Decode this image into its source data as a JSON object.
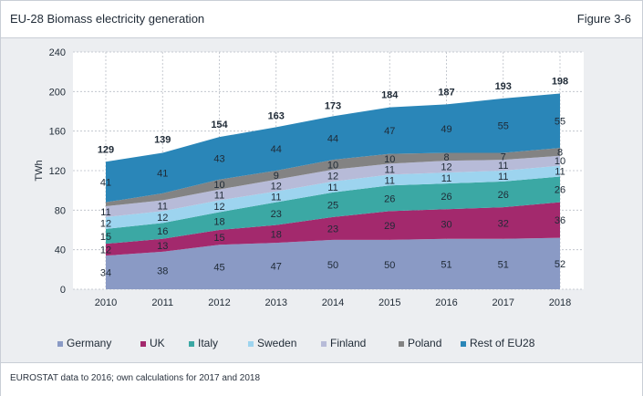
{
  "header": {
    "title": "EU-28 Biomass electricity generation",
    "figure": "Figure 3-6"
  },
  "footer": {
    "note": "EUROSTAT data to 2016; own calculations for 2017 and 2018"
  },
  "colors": {
    "Germany": "#8a9ac5",
    "UK": "#a3296d",
    "Italy": "#3ba8a4",
    "Sweden": "#9dd4ef",
    "Finland": "#b7bbd8",
    "Poland": "#838383",
    "Rest of EU28": "#2a86b8"
  },
  "chart_data": {
    "type": "area",
    "stacked": true,
    "title": "",
    "xlabel": "",
    "ylabel": "TWh",
    "ylim": [
      0,
      240
    ],
    "yticks": [
      0,
      40,
      80,
      120,
      160,
      200,
      240
    ],
    "grid": true,
    "legend_position": "bottom",
    "x": [
      "2010",
      "2011",
      "2012",
      "2013",
      "2014",
      "2015",
      "2016",
      "2017",
      "2018"
    ],
    "totals": [
      129,
      139,
      154,
      163,
      173,
      184,
      187,
      193,
      198
    ],
    "series": [
      {
        "name": "Germany",
        "values": [
          34,
          38,
          45,
          47,
          50,
          50,
          51,
          51,
          52
        ]
      },
      {
        "name": "UK",
        "values": [
          12,
          13,
          15,
          18,
          23,
          29,
          30,
          32,
          36
        ]
      },
      {
        "name": "Italy",
        "values": [
          15,
          16,
          18,
          23,
          25,
          26,
          26,
          26,
          26
        ]
      },
      {
        "name": "Sweden",
        "values": [
          12,
          12,
          12,
          11,
          11,
          11,
          11,
          11,
          11
        ]
      },
      {
        "name": "Finland",
        "values": [
          11,
          11,
          11,
          12,
          12,
          11,
          12,
          11,
          10
        ]
      },
      {
        "name": "Poland",
        "values": [
          4,
          7,
          10,
          9,
          10,
          10,
          8,
          7,
          8
        ]
      },
      {
        "name": "Rest of EU28",
        "values": [
          41,
          41,
          43,
          44,
          44,
          47,
          49,
          55,
          55
        ]
      }
    ],
    "shown_labels": [
      [
        "34",
        "38",
        "45",
        "47",
        "50",
        "50",
        "51",
        "51",
        "52"
      ],
      [
        "12",
        "13",
        "15",
        "18",
        "23",
        "29",
        "30",
        "32",
        "36"
      ],
      [
        "15",
        "16",
        "18",
        "23",
        "25",
        "26",
        "26",
        "26",
        "26"
      ],
      [
        "12",
        "12",
        "12",
        "11",
        "11",
        "11",
        "11",
        "11",
        "11"
      ],
      [
        "11",
        "11",
        "11",
        "12",
        "12",
        "11",
        "12",
        "11",
        "10"
      ],
      [
        "",
        "",
        "10",
        "9",
        "10",
        "10",
        "8",
        "7",
        "8"
      ],
      [
        "41",
        "41",
        "43",
        "44",
        "44",
        "47",
        "49",
        "55",
        "55"
      ]
    ]
  }
}
